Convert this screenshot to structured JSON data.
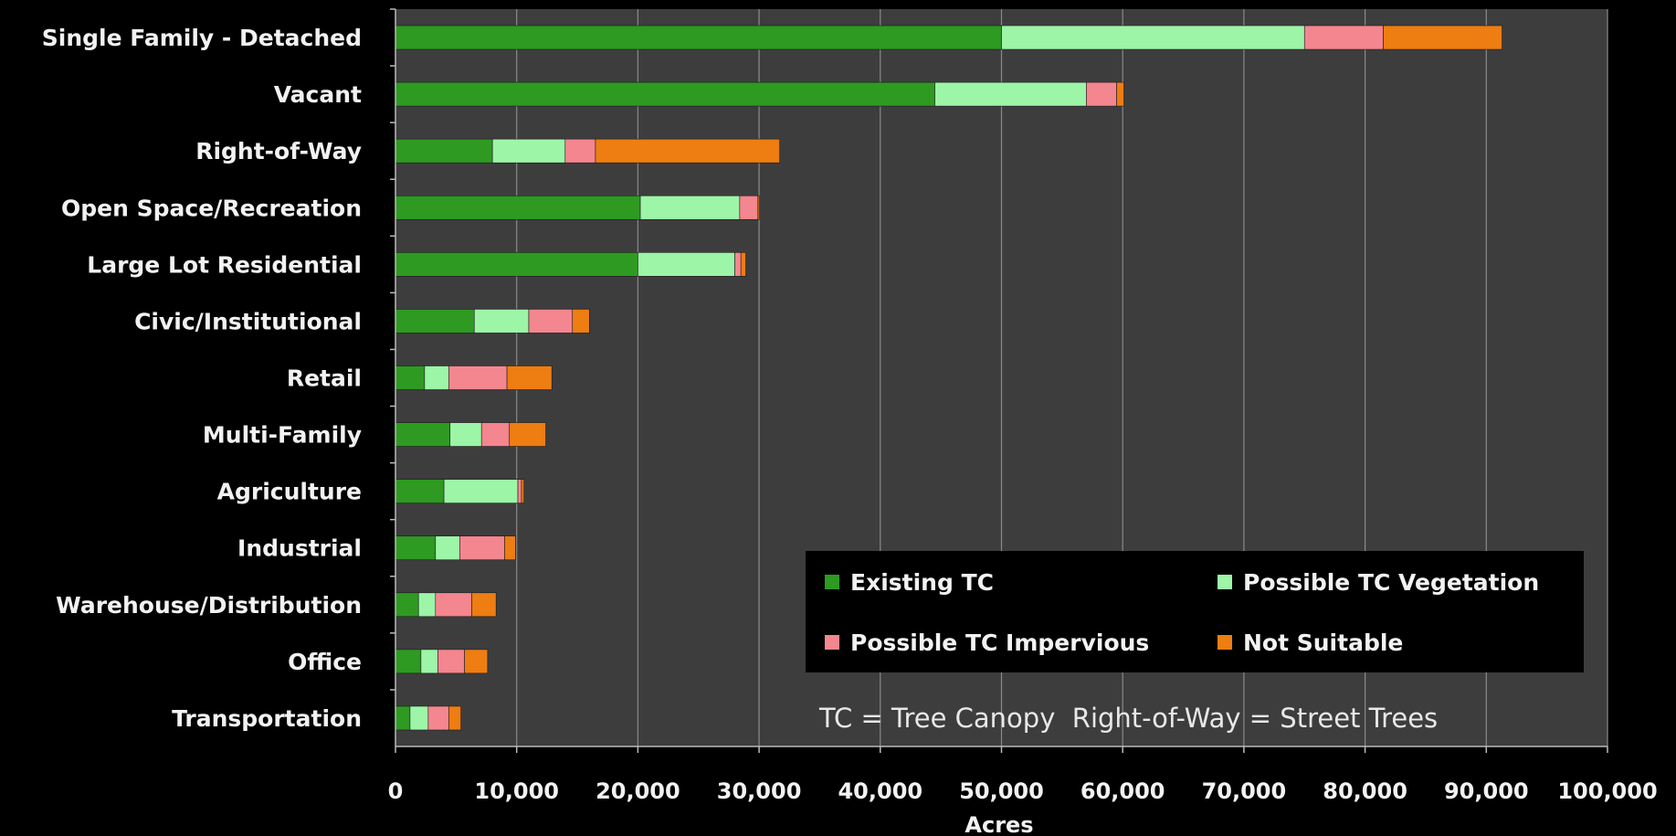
{
  "chart_data": {
    "type": "bar",
    "orientation": "horizontal",
    "stacked": true,
    "categories": [
      "Single Family - Detached",
      "Vacant",
      "Right-of-Way",
      "Open Space/Recreation",
      "Large Lot Residential",
      "Civic/Institutional",
      "Retail",
      "Multi-Family",
      "Agriculture",
      "Industrial",
      "Warehouse/Distribution",
      "Office",
      "Transportation"
    ],
    "series": [
      {
        "name": "Existing TC",
        "color": "#2e9a22",
        "values": [
          50000,
          44500,
          8000,
          20200,
          20000,
          6500,
          2400,
          4500,
          4000,
          3300,
          1900,
          2100,
          1200
        ]
      },
      {
        "name": "Possible TC Vegetation",
        "color": "#9df5a8",
        "values": [
          25000,
          12500,
          6000,
          8200,
          8000,
          4500,
          2000,
          2600,
          6100,
          2000,
          1400,
          1400,
          1500
        ]
      },
      {
        "name": "Possible TC Impervious",
        "color": "#f4868f",
        "values": [
          6500,
          2500,
          2500,
          1500,
          500,
          3600,
          4800,
          2300,
          300,
          3700,
          3000,
          2200,
          1700
        ]
      },
      {
        "name": "Not Suitable",
        "color": "#ee7d12",
        "values": [
          9800,
          600,
          15200,
          100,
          400,
          1400,
          3700,
          3000,
          200,
          900,
          2000,
          1900,
          1000
        ]
      }
    ],
    "xlabel": "Acres",
    "xlim": [
      0,
      100000
    ],
    "xticks": [
      "0",
      "10,000",
      "20,000",
      "30,000",
      "40,000",
      "50,000",
      "60,000",
      "70,000",
      "80,000",
      "90,000",
      "100,000"
    ],
    "grid": true,
    "legend_position": "bottom-right, inside",
    "plot_background": "#3d3d3d",
    "page_background": "#000000",
    "annotation": "TC = Tree Canopy  Right-of-Way = Street Trees"
  }
}
